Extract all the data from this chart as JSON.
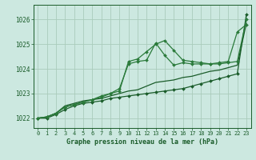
{
  "background_color": "#cce8e0",
  "grid_color": "#aaccbb",
  "line_color_dark": "#1a5c2a",
  "line_color_mid": "#2a7a3a",
  "xlabel": "Graphe pression niveau de la mer (hPa)",
  "ylim": [
    1021.6,
    1026.6
  ],
  "xlim": [
    -0.5,
    23.5
  ],
  "yticks": [
    1022,
    1023,
    1024,
    1025,
    1026
  ],
  "xtick_labels": [
    "0",
    "1",
    "2",
    "3",
    "4",
    "5",
    "6",
    "7",
    "8",
    "9",
    "10",
    "11",
    "12",
    "13",
    "14",
    "15",
    "16",
    "17",
    "18",
    "19",
    "20",
    "21",
    "22",
    "23"
  ],
  "series": [
    {
      "y": [
        1022.0,
        1022.0,
        1022.15,
        1022.35,
        1022.5,
        1022.6,
        1022.65,
        1022.7,
        1022.8,
        1022.85,
        1022.9,
        1022.95,
        1023.0,
        1023.05,
        1023.1,
        1023.15,
        1023.2,
        1023.3,
        1023.4,
        1023.5,
        1023.6,
        1023.7,
        1023.8,
        1026.2
      ],
      "color": "#1a5c2a",
      "lw": 0.9,
      "marker": true,
      "ms": 2.0
    },
    {
      "y": [
        1022.0,
        1022.05,
        1022.2,
        1022.45,
        1022.55,
        1022.65,
        1022.75,
        1022.85,
        1023.0,
        1023.1,
        1024.3,
        1024.4,
        1024.7,
        1025.0,
        1025.15,
        1024.75,
        1024.35,
        1024.3,
        1024.25,
        1024.2,
        1024.25,
        1024.3,
        1025.5,
        1025.8
      ],
      "color": "#2a7a3a",
      "lw": 0.9,
      "marker": true,
      "ms": 2.0
    },
    {
      "y": [
        1022.0,
        1022.05,
        1022.2,
        1022.45,
        1022.55,
        1022.65,
        1022.75,
        1022.9,
        1023.0,
        1023.2,
        1024.2,
        1024.3,
        1024.35,
        1025.05,
        1024.55,
        1024.15,
        1024.25,
        1024.2,
        1024.2,
        1024.2,
        1024.2,
        1024.25,
        1024.3,
        1026.0
      ],
      "color": "#2a7a3a",
      "lw": 0.9,
      "marker": true,
      "ms": 2.0
    },
    {
      "y": [
        1022.0,
        1022.05,
        1022.2,
        1022.5,
        1022.6,
        1022.7,
        1022.75,
        1022.8,
        1022.9,
        1023.0,
        1023.1,
        1023.15,
        1023.3,
        1023.45,
        1023.5,
        1023.55,
        1023.65,
        1023.7,
        1023.8,
        1023.9,
        1023.95,
        1024.05,
        1024.15,
        1025.85
      ],
      "color": "#1a5c2a",
      "lw": 0.9,
      "marker": false,
      "ms": 0
    }
  ]
}
